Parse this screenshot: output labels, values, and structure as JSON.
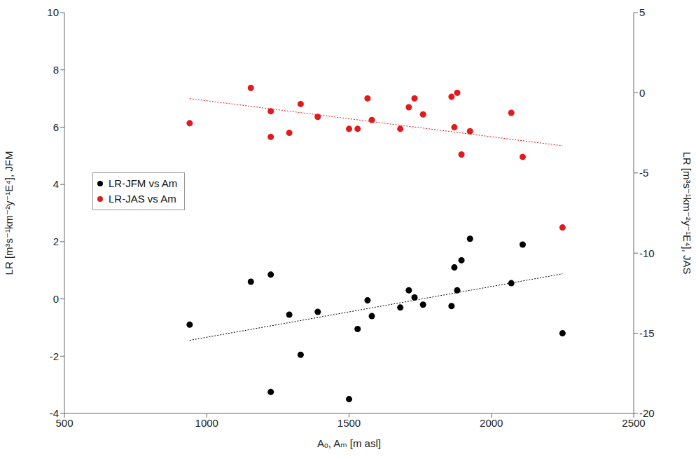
{
  "chart_data": {
    "type": "scatter",
    "x_label": "Aₒ, Aₘ [m asl]",
    "y_label": "LR [m³s⁻¹km⁻²y⁻¹E⁴], JFM",
    "y2_label": "LR [m³s⁻¹km⁻²y⁻¹E⁴], JAS",
    "x": [
      940,
      1155,
      1225,
      1225,
      1290,
      1330,
      1390,
      1500,
      1530,
      1565,
      1580,
      1680,
      1710,
      1730,
      1760,
      1860,
      1870,
      1880,
      1895,
      1925,
      2070,
      2110,
      2250
    ],
    "series": [
      {
        "name": "LR-JFM vs Am",
        "color": "#000000",
        "marker": "circle",
        "values": [
          -0.9,
          0.6,
          0.85,
          -3.25,
          -0.55,
          -1.95,
          -0.45,
          -3.5,
          -1.05,
          -0.05,
          -0.6,
          -0.3,
          0.3,
          0.05,
          -0.2,
          -0.25,
          1.1,
          0.3,
          1.35,
          2.1,
          0.55,
          1.9,
          -1.2
        ]
      },
      {
        "name": "LR-JAS vs Am",
        "color": "#e31a1c",
        "marker": "circle",
        "axis": "y2",
        "values": [
          -1.9,
          0.3,
          -1.15,
          -2.75,
          -2.5,
          -0.7,
          -1.5,
          -2.25,
          -2.25,
          -0.35,
          -1.7,
          -2.25,
          -0.9,
          -0.35,
          -1.35,
          -0.25,
          -2.15,
          0.0,
          -3.85,
          -2.4,
          -1.25,
          -4.0,
          -8.4
        ]
      }
    ],
    "xlim": [
      500,
      2500
    ],
    "xticks": [
      500,
      1000,
      1500,
      2000,
      2500
    ],
    "ylim": [
      -4,
      10
    ],
    "yticks": [
      -4,
      -2,
      0,
      2,
      4,
      6,
      8,
      10
    ],
    "y2lim": [
      -20,
      5
    ],
    "y2ticks": [
      -20,
      -15,
      -10,
      -5,
      0,
      5
    ],
    "legend": "left",
    "grid": false
  }
}
